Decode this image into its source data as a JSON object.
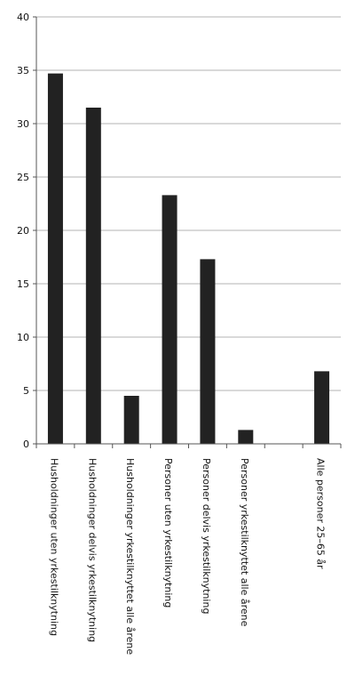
{
  "chart_data": {
    "type": "bar",
    "title": "",
    "xlabel": "",
    "ylabel": "",
    "ylim": [
      0,
      40
    ],
    "yticks": [
      0,
      5,
      10,
      15,
      20,
      25,
      30,
      35,
      40
    ],
    "grid": true,
    "categories": [
      "Husholdninger uten yrkestilknytning",
      "Husholdninger delvis yrkestilknytning",
      "Husholdninger yrkestilknyttet alle årene",
      "Personer uten yrkestilknytning",
      "Personer delvis yrkestilknytning",
      "Personer yrkestilknyttet alle årene",
      "",
      "Alle personer 25–65 år"
    ],
    "values": [
      34.7,
      31.5,
      4.5,
      23.3,
      17.3,
      1.3,
      null,
      6.8
    ],
    "colors": {
      "bar": "#222222",
      "grid": "#b3b3b3",
      "axis": "#555555"
    }
  }
}
